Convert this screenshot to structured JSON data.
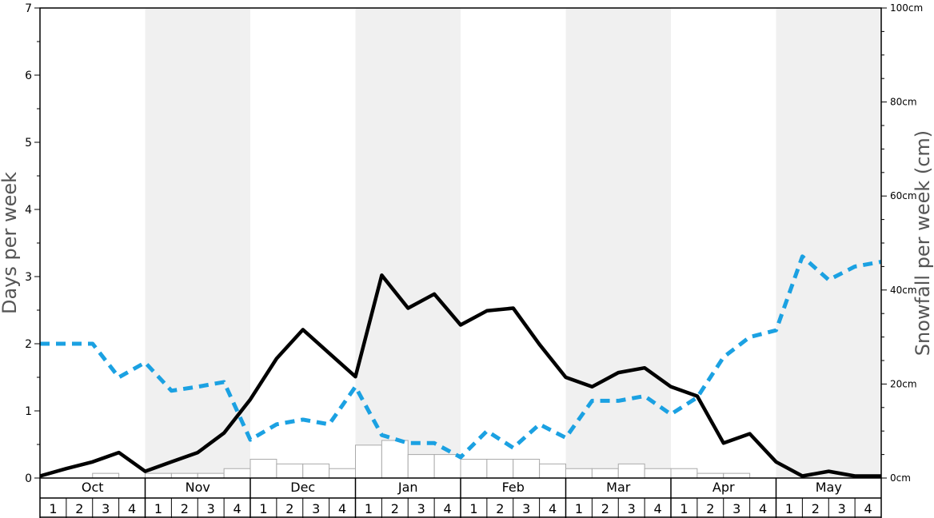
{
  "chart_data": {
    "type": "bar",
    "title": "",
    "ylabel_left": "Days per week",
    "ylabel_right": "Snowfall per week (cm)",
    "ylim_left": [
      0,
      7
    ],
    "ylim_right": [
      0,
      100
    ],
    "left_ticks": [
      "0",
      "1",
      "2",
      "3",
      "4",
      "5",
      "6",
      "7"
    ],
    "right_ticks": [
      "0cm",
      "20cm",
      "40cm",
      "60cm",
      "80cm",
      "100cm"
    ],
    "months": [
      "Oct",
      "Nov",
      "Dec",
      "Jan",
      "Feb",
      "Mar",
      "Apr",
      "May"
    ],
    "week_labels": [
      "1",
      "2",
      "3",
      "4",
      "1",
      "2",
      "3",
      "4",
      "1",
      "2",
      "3",
      "4",
      "1",
      "2",
      "3",
      "4",
      "1",
      "2",
      "3",
      "4",
      "1",
      "2",
      "3",
      "4",
      "1",
      "2",
      "3",
      "4",
      "1",
      "2",
      "3",
      "4"
    ],
    "colors": {
      "black_line": "#000000",
      "blue_line": "#1ba1e2",
      "bars": "#ffffff",
      "bar_stroke": "#aaaaaa",
      "shade": "#f0f0f0"
    },
    "series": [
      {
        "type": "bar",
        "axis": "right",
        "unit": "cm",
        "values": [
          0,
          0,
          1,
          0,
          1,
          1,
          1,
          2,
          4,
          3,
          3,
          2,
          7,
          8,
          5,
          5,
          4,
          4,
          4,
          3,
          2,
          2,
          3,
          2,
          2,
          1,
          1,
          0,
          0,
          0,
          0,
          0
        ]
      },
      {
        "type": "line",
        "style": "solid",
        "axis": "left",
        "values": [
          0.03,
          0.14,
          0.24,
          0.38,
          0.1,
          0.24,
          0.38,
          0.67,
          1.17,
          1.78,
          2.21,
          1.86,
          1.51,
          3.02,
          2.53,
          2.74,
          2.28,
          2.49,
          2.53,
          1.99,
          1.5,
          1.36,
          1.57,
          1.64,
          1.36,
          1.22,
          0.52,
          0.66,
          0.24,
          0.03,
          0.1,
          0.03,
          0.03
        ]
      },
      {
        "type": "line",
        "style": "dashed",
        "axis": "left",
        "values": [
          2.0,
          2.0,
          2.0,
          1.5,
          1.72,
          1.3,
          1.36,
          1.43,
          0.57,
          0.8,
          0.87,
          0.8,
          1.36,
          0.64,
          0.52,
          0.52,
          0.31,
          0.7,
          0.45,
          0.8,
          0.6,
          1.15,
          1.15,
          1.22,
          0.95,
          1.2,
          1.8,
          2.1,
          2.2,
          3.3,
          2.95,
          3.15,
          3.22
        ]
      }
    ]
  }
}
